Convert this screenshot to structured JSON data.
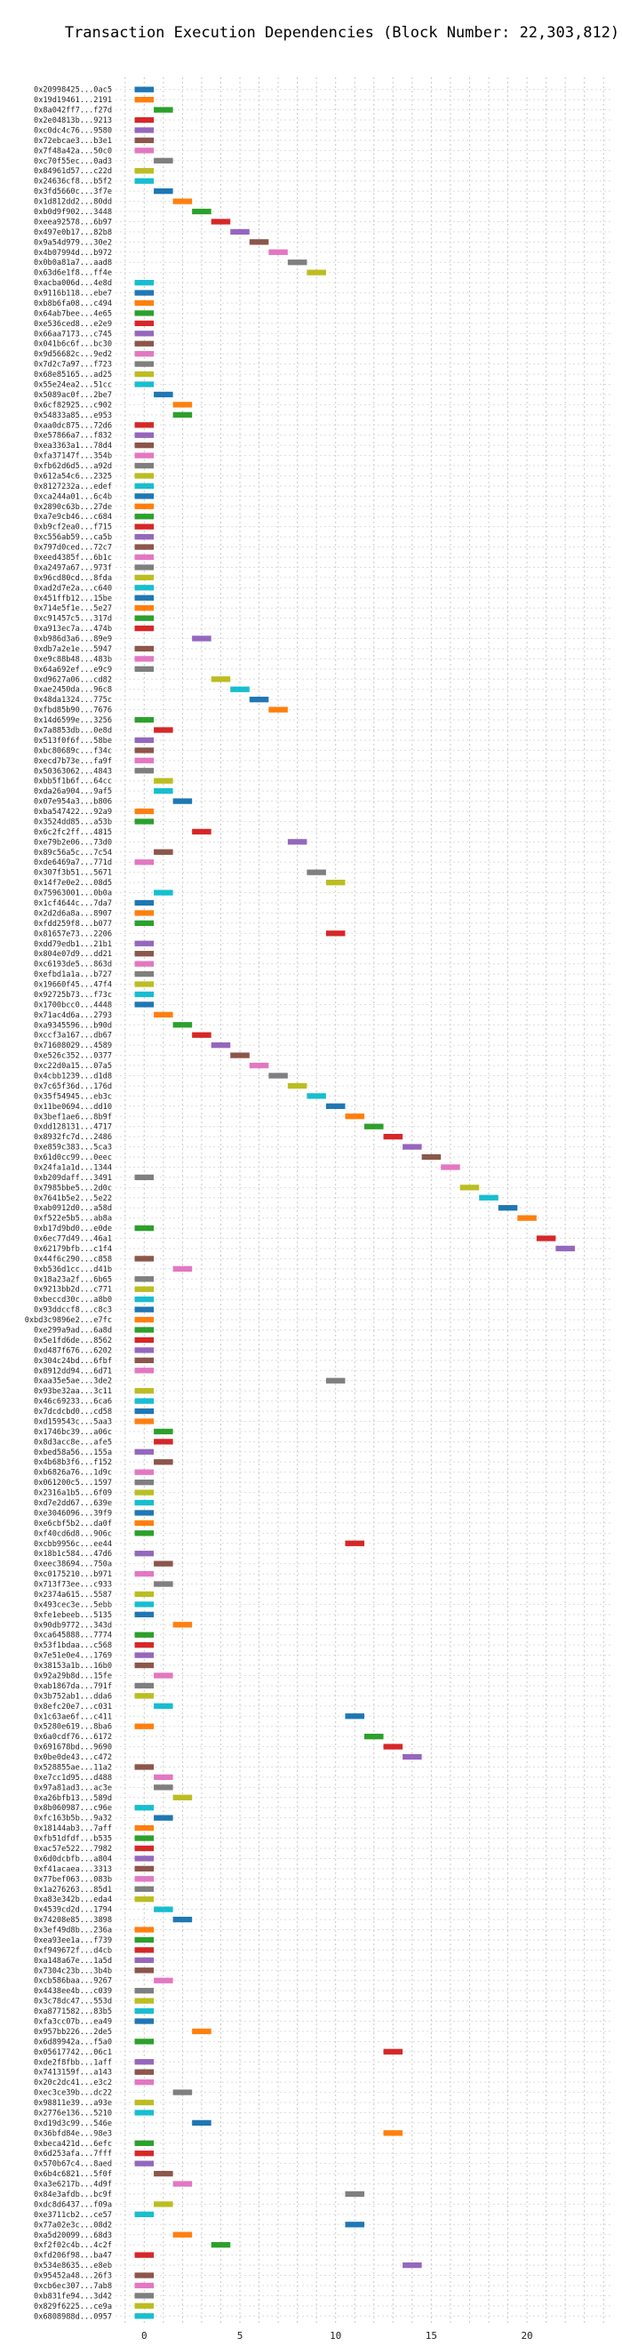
{
  "chart_data": {
    "type": "bar",
    "orientation": "horizontal",
    "title": "Transaction Execution Dependencies (Block Number: 22,303,812)",
    "xlabel": "",
    "ylabel": "",
    "xlim": [
      -1.5,
      24.5
    ],
    "xticks": [
      0,
      5,
      10,
      15,
      20
    ],
    "grid": true,
    "colors": [
      "#1f77b4",
      "#ff7f0e",
      "#2ca02c",
      "#d62728",
      "#9467bd",
      "#8c564b",
      "#e377c2",
      "#7f7f7f",
      "#bcbd22",
      "#17becf"
    ],
    "rows": [
      {
        "label": "0x20998425...0ac5",
        "start": 0
      },
      {
        "label": "0x19d19461...2191",
        "start": 0
      },
      {
        "label": "0x8a042ff7...f27d",
        "start": 1
      },
      {
        "label": "0x2e04813b...9213",
        "start": 0
      },
      {
        "label": "0xc0dc4c76...9580",
        "start": 0
      },
      {
        "label": "0x72ebcae3...b3e1",
        "start": 0
      },
      {
        "label": "0x7f48a42a...50c0",
        "start": 0
      },
      {
        "label": "0xc70f55ec...0ad3",
        "start": 1
      },
      {
        "label": "0x84961d57...c22d",
        "start": 0
      },
      {
        "label": "0x24636cf8...b5f2",
        "start": 0
      },
      {
        "label": "0x3fd5660c...3f7e",
        "start": 1
      },
      {
        "label": "0x1d812dd2...80dd",
        "start": 2
      },
      {
        "label": "0xb0d9f902...3448",
        "start": 3
      },
      {
        "label": "0xeea92578...6b97",
        "start": 4
      },
      {
        "label": "0x497e0b17...82b8",
        "start": 5
      },
      {
        "label": "0x9a54d979...30e2",
        "start": 6
      },
      {
        "label": "0x4b07994d...b972",
        "start": 7
      },
      {
        "label": "0x0b0a81a7...aad8",
        "start": 8
      },
      {
        "label": "0x63d6e1f8...ff4e",
        "start": 9
      },
      {
        "label": "0xacba006d...4e8d",
        "start": 0
      },
      {
        "label": "0x9116b118...ebe7",
        "start": 0
      },
      {
        "label": "0xb8b6fa08...c494",
        "start": 0
      },
      {
        "label": "0x64ab7bee...4e65",
        "start": 0
      },
      {
        "label": "0xe536ced8...e2e9",
        "start": 0
      },
      {
        "label": "0x66aa7173...c745",
        "start": 0
      },
      {
        "label": "0x041b6c6f...bc30",
        "start": 0
      },
      {
        "label": "0x9d56682c...9ed2",
        "start": 0
      },
      {
        "label": "0x7d2c7a97...f723",
        "start": 0
      },
      {
        "label": "0x68e85165...ad25",
        "start": 0
      },
      {
        "label": "0x55e24ea2...51cc",
        "start": 0
      },
      {
        "label": "0x5089ac0f...2be7",
        "start": 1
      },
      {
        "label": "0x6cf82925...c902",
        "start": 2
      },
      {
        "label": "0x54833a85...e953",
        "start": 2
      },
      {
        "label": "0xaa0dc875...72d6",
        "start": 0
      },
      {
        "label": "0xe57866a7...f832",
        "start": 0
      },
      {
        "label": "0xea3363a1...78d4",
        "start": 0
      },
      {
        "label": "0xfa37147f...354b",
        "start": 0
      },
      {
        "label": "0xfb62d6d5...a92d",
        "start": 0
      },
      {
        "label": "0x612a54c6...2325",
        "start": 0
      },
      {
        "label": "0x8127232a...edef",
        "start": 0
      },
      {
        "label": "0xca244a01...6c4b",
        "start": 0
      },
      {
        "label": "0x2890c63b...27de",
        "start": 0
      },
      {
        "label": "0xa7e9cb46...c684",
        "start": 0
      },
      {
        "label": "0xb9cf2ea0...f715",
        "start": 0
      },
      {
        "label": "0xc556ab59...ca5b",
        "start": 0
      },
      {
        "label": "0x797d0ced...72c7",
        "start": 0
      },
      {
        "label": "0xeed4385f...6b1c",
        "start": 0
      },
      {
        "label": "0xa2497a67...973f",
        "start": 0
      },
      {
        "label": "0x96cd80cd...8fda",
        "start": 0
      },
      {
        "label": "0xad2d7e2a...c640",
        "start": 0
      },
      {
        "label": "0x451ffb12...15be",
        "start": 0
      },
      {
        "label": "0x714e5f1e...5e27",
        "start": 0
      },
      {
        "label": "0xc91457c5...317d",
        "start": 0
      },
      {
        "label": "0xa913ec7a...474b",
        "start": 0
      },
      {
        "label": "0xb986d3a6...89e9",
        "start": 3
      },
      {
        "label": "0xdb7a2e1e...5947",
        "start": 0
      },
      {
        "label": "0xe9c88b48...483b",
        "start": 0
      },
      {
        "label": "0x64a692ef...e9c9",
        "start": 0
      },
      {
        "label": "0xd9627a06...cd82",
        "start": 4
      },
      {
        "label": "0xae2450da...96c8",
        "start": 5
      },
      {
        "label": "0x48da1324...775c",
        "start": 6
      },
      {
        "label": "0xfbd85b90...7676",
        "start": 7
      },
      {
        "label": "0x14d6599e...3256",
        "start": 0
      },
      {
        "label": "0x7a8853db...0e8d",
        "start": 1
      },
      {
        "label": "0x513f0f6f...58be",
        "start": 0
      },
      {
        "label": "0xbc80689c...f34c",
        "start": 0
      },
      {
        "label": "0xecd7b73e...fa9f",
        "start": 0
      },
      {
        "label": "0x50363062...4843",
        "start": 0
      },
      {
        "label": "0xbb5f1b6f...64cc",
        "start": 1
      },
      {
        "label": "0xda26a904...9af5",
        "start": 1
      },
      {
        "label": "0x07e954a3...b806",
        "start": 2
      },
      {
        "label": "0xba547422...92a9",
        "start": 0
      },
      {
        "label": "0x3524dd85...a53b",
        "start": 0
      },
      {
        "label": "0x6c2fc2ff...4815",
        "start": 3
      },
      {
        "label": "0xe79b2e06...73d0",
        "start": 8
      },
      {
        "label": "0x89c56a5c...7c54",
        "start": 1
      },
      {
        "label": "0xde6469a7...771d",
        "start": 0
      },
      {
        "label": "0x307f3b51...5671",
        "start": 9
      },
      {
        "label": "0x14f7e0e2...08d5",
        "start": 10
      },
      {
        "label": "0x75963001...0b0a",
        "start": 1
      },
      {
        "label": "0x1cf4644c...7da7",
        "start": 0
      },
      {
        "label": "0x2d2d6a8a...8907",
        "start": 0
      },
      {
        "label": "0xfdd259f8...b077",
        "start": 0
      },
      {
        "label": "0x81657e73...2206",
        "start": 10
      },
      {
        "label": "0xdd79edb1...21b1",
        "start": 0
      },
      {
        "label": "0x804e07d9...dd21",
        "start": 0
      },
      {
        "label": "0xc6193de5...863d",
        "start": 0
      },
      {
        "label": "0xefbd1a1a...b727",
        "start": 0
      },
      {
        "label": "0x19660f45...47f4",
        "start": 0
      },
      {
        "label": "0x92725b73...f73c",
        "start": 0
      },
      {
        "label": "0x1700bcc0...4448",
        "start": 0
      },
      {
        "label": "0x71ac4d6a...2793",
        "start": 1
      },
      {
        "label": "0xa9345596...b90d",
        "start": 2
      },
      {
        "label": "0xccf3a167...db67",
        "start": 3
      },
      {
        "label": "0x71608029...4589",
        "start": 4
      },
      {
        "label": "0xe526c352...0377",
        "start": 5
      },
      {
        "label": "0xc22d0a15...07a5",
        "start": 6
      },
      {
        "label": "0x4cbb1239...d1d8",
        "start": 7
      },
      {
        "label": "0x7c65f36d...176d",
        "start": 8
      },
      {
        "label": "0x35f54945...eb3c",
        "start": 9
      },
      {
        "label": "0x11be0694...dd10",
        "start": 10
      },
      {
        "label": "0x3bef1ae6...8b9f",
        "start": 11
      },
      {
        "label": "0xdd128131...4717",
        "start": 12
      },
      {
        "label": "0x8932fc7d...2486",
        "start": 13
      },
      {
        "label": "0xe859c383...5ca3",
        "start": 14
      },
      {
        "label": "0x61d0cc99...0eec",
        "start": 15
      },
      {
        "label": "0x24fa1a1d...1344",
        "start": 16
      },
      {
        "label": "0xb209daff...3491",
        "start": 0
      },
      {
        "label": "0x7985bbe5...2d0c",
        "start": 17
      },
      {
        "label": "0x7641b5e2...5e22",
        "start": 18
      },
      {
        "label": "0xab0912d0...a58d",
        "start": 19
      },
      {
        "label": "0xf522e5b5...ab8a",
        "start": 20
      },
      {
        "label": "0xb17d9bd0...e0de",
        "start": 0
      },
      {
        "label": "0x6ec77d49...46a1",
        "start": 21
      },
      {
        "label": "0x62179bfb...c1f4",
        "start": 22
      },
      {
        "label": "0x44f6c290...c858",
        "start": 0
      },
      {
        "label": "0xb536d1cc...d41b",
        "start": 2
      },
      {
        "label": "0x18a23a2f...6b65",
        "start": 0
      },
      {
        "label": "0x9213bb2d...c771",
        "start": 0
      },
      {
        "label": "0xbeccd30c...a8b0",
        "start": 0
      },
      {
        "label": "0x93ddccf8...c8c3",
        "start": 0
      },
      {
        "label": "0xbd3c9896e2...e7fc",
        "start": 0
      },
      {
        "label": "0xe299a9ad...6a8d",
        "start": 0
      },
      {
        "label": "0x5e1fd6de...8562",
        "start": 0
      },
      {
        "label": "0xd487f676...6202",
        "start": 0
      },
      {
        "label": "0x304c24bd...6fbf",
        "start": 0
      },
      {
        "label": "0x8912dd94...6d71",
        "start": 0
      },
      {
        "label": "0xaa35e5ae...3de2",
        "start": 10
      },
      {
        "label": "0x93be32aa...3c11",
        "start": 0
      },
      {
        "label": "0x46c69233...6ca6",
        "start": 0
      },
      {
        "label": "0x7dcdcbd0...cd58",
        "start": 0
      },
      {
        "label": "0xd159543c...5aa3",
        "start": 0
      },
      {
        "label": "0x1746bc39...a06c",
        "start": 1
      },
      {
        "label": "0x8d3acc8e...afe5",
        "start": 1
      },
      {
        "label": "0xbed58a56...155a",
        "start": 0
      },
      {
        "label": "0x4b68b3f6...f152",
        "start": 1
      },
      {
        "label": "0xb6826a76...1d9c",
        "start": 0
      },
      {
        "label": "0x061200c5...1597",
        "start": 0
      },
      {
        "label": "0x2316a1b5...6f09",
        "start": 0
      },
      {
        "label": "0xd7e2dd67...639e",
        "start": 0
      },
      {
        "label": "0xe3046096...39f9",
        "start": 0
      },
      {
        "label": "0xe6cbf5b2...da0f",
        "start": 0
      },
      {
        "label": "0xf40cd6d8...906c",
        "start": 0
      },
      {
        "label": "0xcbb9956c...ee44",
        "start": 11
      },
      {
        "label": "0x18b1c584...47d6",
        "start": 0
      },
      {
        "label": "0xeec38694...750a",
        "start": 1
      },
      {
        "label": "0xc0175210...b971",
        "start": 0
      },
      {
        "label": "0x713f73ee...c933",
        "start": 1
      },
      {
        "label": "0x2374a615...5587",
        "start": 0
      },
      {
        "label": "0x493cec3e...5ebb",
        "start": 0
      },
      {
        "label": "0xfe1ebeeb...5135",
        "start": 0
      },
      {
        "label": "0x90db9772...343d",
        "start": 2
      },
      {
        "label": "0xca645888...7774",
        "start": 0
      },
      {
        "label": "0x53f1bdaa...c568",
        "start": 0
      },
      {
        "label": "0x7e51e0e4...1769",
        "start": 0
      },
      {
        "label": "0x38153a1b...16b0",
        "start": 0
      },
      {
        "label": "0x92a29b8d...15fe",
        "start": 1
      },
      {
        "label": "0xab1867da...791f",
        "start": 0
      },
      {
        "label": "0x3b752ab1...dda6",
        "start": 0
      },
      {
        "label": "0x8efc20e7...c031",
        "start": 1
      },
      {
        "label": "0x1c63ae6f...c411",
        "start": 11
      },
      {
        "label": "0x5280e619...8ba6",
        "start": 0
      },
      {
        "label": "0x6a0cdf76...6172",
        "start": 12
      },
      {
        "label": "0x691678bd...9690",
        "start": 13
      },
      {
        "label": "0x0be0de43...c472",
        "start": 14
      },
      {
        "label": "0x528855ae...11a2",
        "start": 0
      },
      {
        "label": "0xe7cc1d95...d488",
        "start": 1
      },
      {
        "label": "0x97a81ad3...ac3e",
        "start": 1
      },
      {
        "label": "0xa26bfb13...589d",
        "start": 2
      },
      {
        "label": "0x8b060987...c96e",
        "start": 0
      },
      {
        "label": "0xfc163b5b...9a32",
        "start": 1
      },
      {
        "label": "0x18144ab3...7aff",
        "start": 0
      },
      {
        "label": "0xfb51dfdf...b535",
        "start": 0
      },
      {
        "label": "0xac57e522...7982",
        "start": 0
      },
      {
        "label": "0x6d0dcbfb...a804",
        "start": 0
      },
      {
        "label": "0xf41acaea...3313",
        "start": 0
      },
      {
        "label": "0x77bef063...083b",
        "start": 0
      },
      {
        "label": "0x1a276263...85d1",
        "start": 0
      },
      {
        "label": "0xa83e342b...eda4",
        "start": 0
      },
      {
        "label": "0x4539cd2d...1794",
        "start": 1
      },
      {
        "label": "0x74208e85...3898",
        "start": 2
      },
      {
        "label": "0x3ef49d8b...236a",
        "start": 0
      },
      {
        "label": "0xea93ee1a...f739",
        "start": 0
      },
      {
        "label": "0xf949672f...d4cb",
        "start": 0
      },
      {
        "label": "0xa148a67e...1a5d",
        "start": 0
      },
      {
        "label": "0x7304c23b...3b4b",
        "start": 0
      },
      {
        "label": "0xcb586baa...9267",
        "start": 1
      },
      {
        "label": "0x4438ee4b...c039",
        "start": 0
      },
      {
        "label": "0x3c78dc47...553d",
        "start": 0
      },
      {
        "label": "0xa8771582...83b5",
        "start": 0
      },
      {
        "label": "0xfa3cc07b...ea49",
        "start": 0
      },
      {
        "label": "0x957bb226...2de5",
        "start": 3
      },
      {
        "label": "0x6d89942a...f5a0",
        "start": 0
      },
      {
        "label": "0x05617742...06c1",
        "start": 13
      },
      {
        "label": "0xde2f8fbb...1aff",
        "start": 0
      },
      {
        "label": "0x7413159f...a143",
        "start": 0
      },
      {
        "label": "0x20c2dc41...e3c2",
        "start": 0
      },
      {
        "label": "0xec3ce39b...dc22",
        "start": 2
      },
      {
        "label": "0x98811e39...a93e",
        "start": 0
      },
      {
        "label": "0x2776e136...5210",
        "start": 0
      },
      {
        "label": "0xd19d3c99...546e",
        "start": 3
      },
      {
        "label": "0x36bfd84e...98e3",
        "start": 13
      },
      {
        "label": "0xbeca421d...6efc",
        "start": 0
      },
      {
        "label": "0x6d253afa...7fff",
        "start": 0
      },
      {
        "label": "0x570b67c4...8aed",
        "start": 0
      },
      {
        "label": "0x6b4c6821...5f0f",
        "start": 1
      },
      {
        "label": "0xa3e6217b...4d9f",
        "start": 2
      },
      {
        "label": "0x84e3afdb...bc9f",
        "start": 11
      },
      {
        "label": "0xdc8d6437...f09a",
        "start": 1
      },
      {
        "label": "0xe3711cb2...ce57",
        "start": 0
      },
      {
        "label": "0x77a02e3c...08d2",
        "start": 11
      },
      {
        "label": "0xa5d20099...68d3",
        "start": 2
      },
      {
        "label": "0xf2f02c4b...4c2f",
        "start": 4
      },
      {
        "label": "0xfd206f98...ba47",
        "start": 0
      },
      {
        "label": "0x534e8635...e8eb",
        "start": 14
      },
      {
        "label": "0x95452a48...26f3",
        "start": 0
      },
      {
        "label": "0xcb6ec307...7ab8",
        "start": 0
      },
      {
        "label": "0xb831fe94...3d42",
        "start": 0
      },
      {
        "label": "0x829f6225...ce9a",
        "start": 0
      },
      {
        "label": "0x6808988d...0957",
        "start": 0
      }
    ]
  }
}
